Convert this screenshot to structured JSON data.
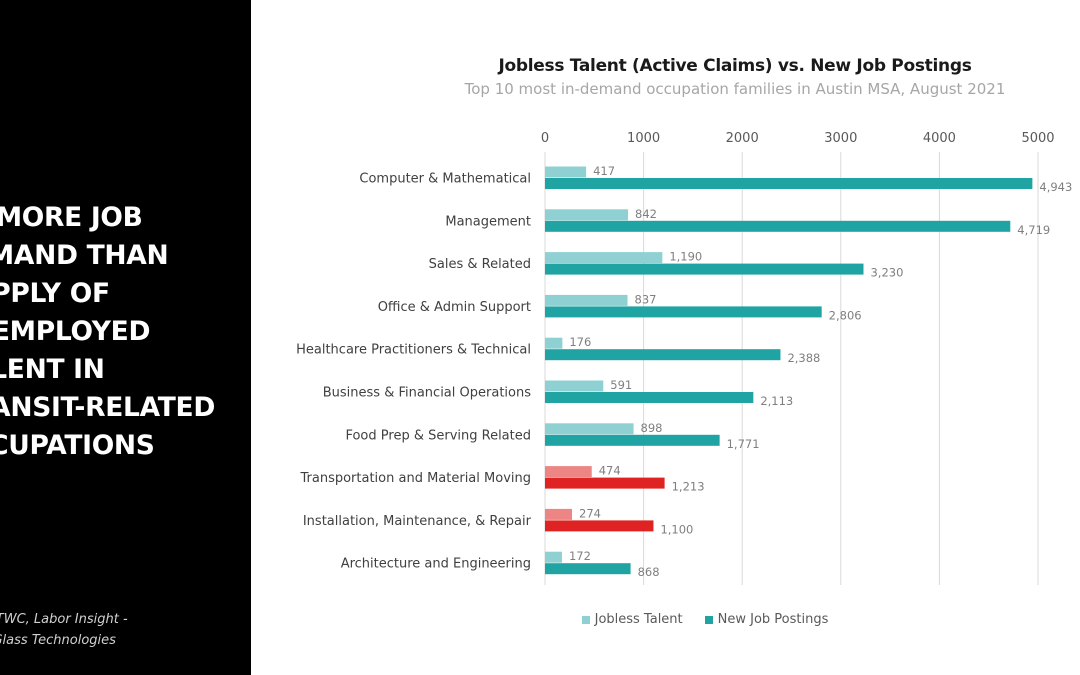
{
  "sidebar": {
    "headline_accent": "x",
    "headline_lines": [
      " MORE JOB",
      "EMAND THAN",
      "UPPLY OF",
      "NEMPLOYED",
      "ALENT IN",
      "RANSIT-RELATED",
      "CCUPATIONS"
    ],
    "sources_lines": [
      "rces: TWC, Labor Insight -",
      "ning Glass Technologies"
    ]
  },
  "colors": {
    "jobless": "#8fd1d3",
    "postings": "#1fa3a3",
    "jobless_highlight": "#ee8585",
    "postings_highlight": "#df2222",
    "gridline": "#d9d9d9"
  },
  "legend": {
    "jobless_label": "Jobless Talent",
    "postings_label": "New Job Postings"
  },
  "chart_data": {
    "type": "bar",
    "orientation": "horizontal",
    "title": "Jobless Talent (Active Claims) vs. New Job Postings",
    "subtitle": "Top 10 most in-demand occupation families in Austin MSA, August 2021",
    "xlim": [
      0,
      5000
    ],
    "xticks": [
      0,
      1000,
      2000,
      3000,
      4000,
      5000
    ],
    "x_axis_position": "top",
    "grid": true,
    "legend_position": "bottom",
    "categories": [
      "Computer & Mathematical",
      "Management",
      "Sales & Related",
      "Office & Admin Support",
      "Healthcare Practitioners & Technical",
      "Business & Financial Operations",
      "Food Prep & Serving Related",
      "Transportation and Material Moving",
      "Installation, Maintenance, & Repair",
      "Architecture and Engineering"
    ],
    "highlighted_categories": [
      "Transportation and Material Moving",
      "Installation, Maintenance, & Repair"
    ],
    "series": [
      {
        "name": "Jobless Talent",
        "values": [
          417,
          842,
          1190,
          837,
          176,
          591,
          898,
          474,
          274,
          172
        ],
        "labels": [
          "417",
          "842",
          "1,190",
          "837",
          "176",
          "591",
          "898",
          "474",
          "274",
          "172"
        ]
      },
      {
        "name": "New Job Postings",
        "values": [
          4943,
          4719,
          3230,
          2806,
          2388,
          2113,
          1771,
          1213,
          1100,
          868
        ],
        "labels": [
          "4,943",
          "4,719",
          "3,230",
          "2,806",
          "2,388",
          "2,113",
          "1,771",
          "1,213",
          "1,100",
          "868"
        ]
      }
    ]
  }
}
